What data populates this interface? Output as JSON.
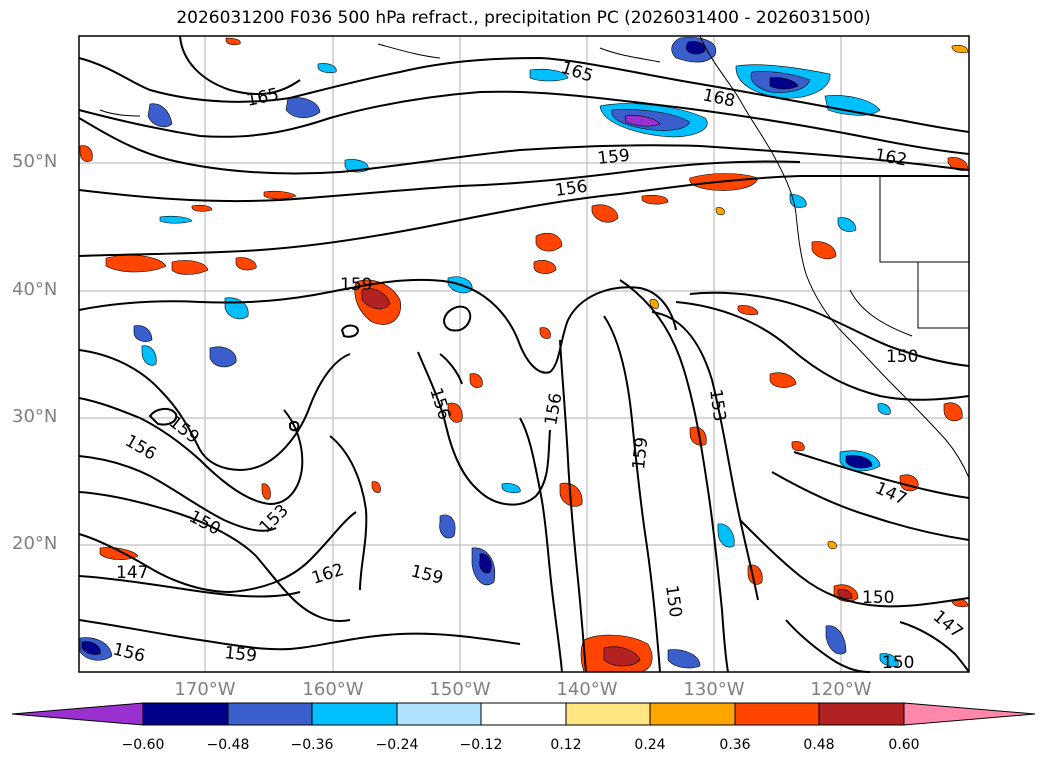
{
  "title": "2026031200 F036 500 hPa refract., precipitation PC (2026031400 - 2026031500)",
  "axes": {
    "lat_labels": [
      {
        "text": "50°N"
      },
      {
        "text": "40°N"
      },
      {
        "text": "30°N"
      },
      {
        "text": "20°N"
      }
    ],
    "lon_labels": [
      {
        "text": "170°W"
      },
      {
        "text": "160°W"
      },
      {
        "text": "150°W"
      },
      {
        "text": "140°W"
      },
      {
        "text": "130°W"
      },
      {
        "text": "120°W"
      }
    ]
  },
  "contour_labels": [
    {
      "text": "165"
    },
    {
      "text": "165"
    },
    {
      "text": "168"
    },
    {
      "text": "159"
    },
    {
      "text": "162"
    },
    {
      "text": "156"
    },
    {
      "text": "159"
    },
    {
      "text": "150"
    },
    {
      "text": "156"
    },
    {
      "text": "156"
    },
    {
      "text": "153"
    },
    {
      "text": "159"
    },
    {
      "text": "159"
    },
    {
      "text": "156"
    },
    {
      "text": "150"
    },
    {
      "text": "153"
    },
    {
      "text": "147"
    },
    {
      "text": "162"
    },
    {
      "text": "159"
    },
    {
      "text": "150"
    },
    {
      "text": "147"
    },
    {
      "text": "156"
    },
    {
      "text": "159"
    },
    {
      "text": "150"
    },
    {
      "text": "147"
    },
    {
      "text": "150"
    }
  ],
  "colorbar": {
    "ticks": [
      "−0.60",
      "−0.48",
      "−0.36",
      "−0.24",
      "−0.12",
      "0.12",
      "0.24",
      "0.36",
      "0.48",
      "0.60"
    ],
    "colors": [
      "#9b30d0",
      "#00008b",
      "#3a5fcd",
      "#00bfff",
      "#b0e2ff",
      "#ffffff",
      "#ffe680",
      "#ffa500",
      "#ff4500",
      "#b22222",
      "#ff88aa"
    ]
  }
}
